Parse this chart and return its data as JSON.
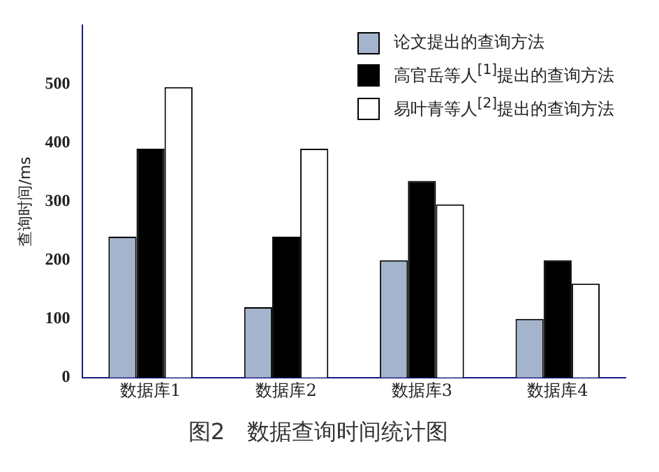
{
  "chart_data": {
    "type": "bar",
    "title": "图2　数据查询时间统计图",
    "ylabel": "查询时间/ms",
    "categories": [
      "数据库1",
      "数据库2",
      "数据库3",
      "数据库4"
    ],
    "series": [
      {
        "name": "论文提出的查询方法",
        "color": "#a4b4cc",
        "values": [
          240,
          120,
          200,
          100
        ]
      },
      {
        "name": "高官岳等人$^{[1]}$提出的查询方法",
        "color": "#000000",
        "values": [
          390,
          240,
          335,
          200
        ]
      },
      {
        "name": "易叶青等人$^{[2]}$提出的查询方法",
        "color": "#ffffff",
        "values": [
          495,
          390,
          295,
          160
        ]
      }
    ],
    "ylim": [
      0,
      600
    ],
    "yticks": [
      0,
      100,
      200,
      300,
      400,
      500
    ],
    "grid": false,
    "legend": "top right"
  }
}
